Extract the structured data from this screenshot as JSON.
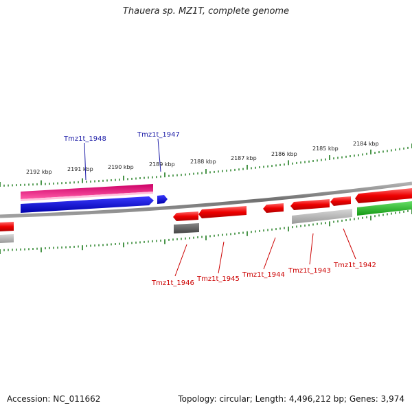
{
  "title": "Thauera sp. MZ1T, complete genome",
  "footer": {
    "accession": "Accession: NC_011662",
    "summary": "Topology: circular; Length: 4,496,212 bp; Genes: 3,974"
  },
  "colors": {
    "backbone": "#808080",
    "tick": "#1a7a1a",
    "forward_gene_label": "#1a1aa6",
    "reverse_gene_label": "#cc0000",
    "red_feature": "#ee0000",
    "pink_feature": "#e8127a",
    "blue_feature": "#0000dd",
    "green_feature": "#22bb22",
    "grey_feature": "#bbbbbb",
    "dark_grey_feature": "#666666"
  },
  "scale_labels": [
    "2192 kbp",
    "2191 kbp",
    "2190 kbp",
    "2189 kbp",
    "2188 kbp",
    "2187 kbp",
    "2186 kbp",
    "2185 kbp",
    "2184 kbp"
  ],
  "gene_labels_top": [
    "Tmz1t_1948",
    "Tmz1t_1947"
  ],
  "gene_labels_bottom": [
    "Tmz1t_1946",
    "Tmz1t_1945",
    "Tmz1t_1944",
    "Tmz1t_1943",
    "Tmz1t_1942"
  ]
}
